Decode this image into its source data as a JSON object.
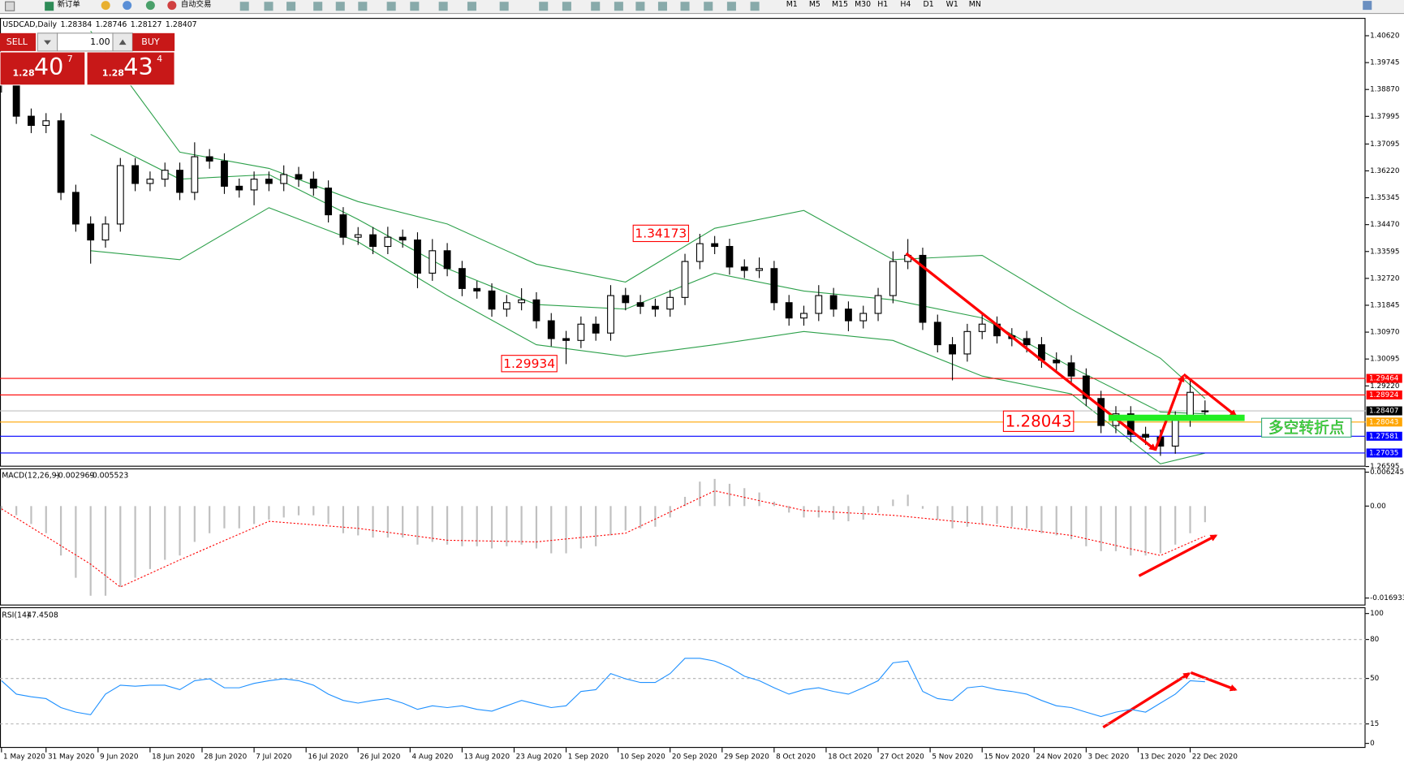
{
  "toolbar": {
    "new_order": "新订单",
    "auto_trading": "自动交易",
    "timeframes": [
      "M1",
      "M5",
      "M15",
      "M30",
      "H1",
      "H4",
      "D1",
      "W1",
      "MN"
    ]
  },
  "trade_panel": {
    "sell": "SELL",
    "lot": "1.00",
    "buy": "BUY",
    "sell_big": "1.28",
    "sell_pips": "40",
    "sell_frac": "7",
    "buy_big": "1.28",
    "buy_pips": "43",
    "buy_frac": "4"
  },
  "note": "多空转折点",
  "chart_data": [
    {
      "type": "candlestick",
      "title": "USDCAD,Daily",
      "up_color": "#ffffff",
      "down_color": "#000000",
      "open": [
        1.395,
        1.3902,
        1.38,
        1.377,
        1.3785,
        1.3552,
        1.3449,
        1.3397,
        1.3449,
        1.3639,
        1.3581,
        1.3595,
        1.3624,
        1.3552,
        1.3668,
        1.3654,
        1.3572,
        1.356,
        1.3595,
        1.3581,
        1.361,
        1.3595,
        1.3566,
        1.3479,
        1.3406,
        1.3414,
        1.3376,
        1.3406,
        1.3397,
        1.3289,
        1.3362,
        1.3304,
        1.3239,
        1.3231,
        1.3172,
        1.3193,
        1.3202,
        1.3134,
        1.3076,
        1.307,
        1.3123,
        1.3094,
        1.3216,
        1.3193,
        1.3181,
        1.3172,
        1.321,
        1.3327,
        1.3385,
        1.3376,
        1.3309,
        1.3298,
        1.3304,
        1.3193,
        1.3143,
        1.3158,
        1.3216,
        1.3172,
        1.3134,
        1.3158,
        1.3216,
        1.3327,
        1.3347,
        1.3129,
        1.3056,
        1.3026,
        1.3099,
        1.3123,
        1.3085,
        1.3076,
        1.3056,
        1.3006,
        1.2997,
        1.2954,
        1.2881,
        1.2793,
        1.2831,
        1.2764,
        1.2755,
        1.2726,
        1.2814,
        1.28384
      ],
      "high": [
        1.3975,
        1.3927,
        1.3825,
        1.381,
        1.381,
        1.3577,
        1.3474,
        1.3474,
        1.3664,
        1.3664,
        1.362,
        1.3649,
        1.3649,
        1.3715,
        1.3693,
        1.3679,
        1.3597,
        1.362,
        1.362,
        1.364,
        1.3635,
        1.362,
        1.3591,
        1.3504,
        1.3439,
        1.3439,
        1.344,
        1.3431,
        1.3422,
        1.34,
        1.3387,
        1.3329,
        1.3264,
        1.3256,
        1.3218,
        1.324,
        1.3227,
        1.3159,
        1.3101,
        1.3148,
        1.3148,
        1.325,
        1.3241,
        1.3218,
        1.3206,
        1.3235,
        1.3352,
        1.3417,
        1.341,
        1.3401,
        1.3334,
        1.334,
        1.3329,
        1.3218,
        1.3183,
        1.325,
        1.3241,
        1.3197,
        1.3183,
        1.3241,
        1.336,
        1.34,
        1.3372,
        1.3154,
        1.3081,
        1.3124,
        1.316,
        1.3148,
        1.311,
        1.3101,
        1.3081,
        1.3031,
        1.3022,
        1.2979,
        1.2906,
        1.2856,
        1.2856,
        1.2789,
        1.278,
        1.2839,
        1.2946,
        1.28746
      ],
      "low": [
        1.3877,
        1.3775,
        1.3745,
        1.3745,
        1.3527,
        1.3424,
        1.332,
        1.3372,
        1.3424,
        1.3556,
        1.3556,
        1.357,
        1.3527,
        1.3527,
        1.3629,
        1.3547,
        1.3535,
        1.351,
        1.3556,
        1.3556,
        1.357,
        1.3541,
        1.3454,
        1.3381,
        1.3381,
        1.3351,
        1.3351,
        1.3372,
        1.324,
        1.3264,
        1.3279,
        1.3214,
        1.3206,
        1.3147,
        1.3147,
        1.3168,
        1.3109,
        1.3051,
        1.2993,
        1.3045,
        1.3069,
        1.3069,
        1.3168,
        1.3156,
        1.3147,
        1.3147,
        1.3185,
        1.3302,
        1.3351,
        1.3284,
        1.3273,
        1.3273,
        1.3168,
        1.3118,
        1.3118,
        1.3133,
        1.3147,
        1.31,
        1.3109,
        1.3133,
        1.3191,
        1.3302,
        1.3104,
        1.3031,
        1.294,
        1.3001,
        1.3074,
        1.306,
        1.3051,
        1.3031,
        1.2981,
        1.2972,
        1.2929,
        1.2856,
        1.2768,
        1.2768,
        1.2739,
        1.273,
        1.2694,
        1.2701,
        1.2789,
        1.28127
      ],
      "close": [
        1.3902,
        1.38,
        1.377,
        1.3785,
        1.3552,
        1.3449,
        1.3397,
        1.3449,
        1.3639,
        1.3581,
        1.3595,
        1.3624,
        1.3552,
        1.3668,
        1.3654,
        1.3572,
        1.356,
        1.3595,
        1.3581,
        1.361,
        1.3595,
        1.3566,
        1.3479,
        1.3406,
        1.3414,
        1.3376,
        1.3406,
        1.3397,
        1.3289,
        1.3362,
        1.3304,
        1.3239,
        1.3231,
        1.3172,
        1.3193,
        1.3202,
        1.3134,
        1.3076,
        1.307,
        1.3123,
        1.3094,
        1.3216,
        1.3193,
        1.3181,
        1.3172,
        1.321,
        1.3327,
        1.3385,
        1.3376,
        1.3309,
        1.3298,
        1.3304,
        1.3193,
        1.3143,
        1.3158,
        1.3216,
        1.3172,
        1.3134,
        1.3158,
        1.3216,
        1.3327,
        1.3347,
        1.3129,
        1.3056,
        1.3026,
        1.3099,
        1.3123,
        1.3085,
        1.3076,
        1.3056,
        1.3006,
        1.2997,
        1.2954,
        1.2881,
        1.2793,
        1.2831,
        1.2764,
        1.2755,
        1.2726,
        1.2814,
        1.2901,
        1.28407
      ],
      "bands": {
        "color": "#2ca04a",
        "x": [
          6,
          12,
          18,
          24,
          30,
          36,
          42,
          48,
          54,
          60,
          66,
          72,
          78,
          81
        ],
        "upper": [
          1.4077,
          1.3683,
          1.363,
          1.3522,
          1.3449,
          1.3318,
          1.326,
          1.3435,
          1.3493,
          1.3333,
          1.3347,
          1.3172,
          1.3012,
          1.2881
        ],
        "middle": [
          1.3741,
          1.3595,
          1.361,
          1.3464,
          1.3304,
          1.3187,
          1.3172,
          1.3289,
          1.3231,
          1.3202,
          1.3143,
          1.2983,
          1.2837,
          1.2831
        ],
        "lower": [
          1.3362,
          1.3333,
          1.3502,
          1.3391,
          1.3216,
          1.3056,
          1.3018,
          1.3056,
          1.3099,
          1.307,
          1.2954,
          1.2896,
          1.2668,
          1.2703
        ]
      },
      "xlim": [
        -0.1,
        91.8
      ],
      "xticks": [
        {
          "value": 0,
          "label": "1 May 2020"
        },
        {
          "value": 3,
          "label": "31 May 2020"
        },
        {
          "value": 6.5,
          "label": "9 Jun 2020"
        },
        {
          "value": 10,
          "label": "18 Jun 2020"
        },
        {
          "value": 13.5,
          "label": "28 Jun 2020"
        },
        {
          "value": 17,
          "label": "7 Jul 2020"
        },
        {
          "value": 20.5,
          "label": "16 Jul 2020"
        },
        {
          "value": 24,
          "label": "26 Jul 2020"
        },
        {
          "value": 27.5,
          "label": "4 Aug 2020"
        },
        {
          "value": 31,
          "label": "13 Aug 2020"
        },
        {
          "value": 34.5,
          "label": "23 Aug 2020"
        },
        {
          "value": 38,
          "label": "1 Sep 2020"
        },
        {
          "value": 41.5,
          "label": "10 Sep 2020"
        },
        {
          "value": 45,
          "label": "20 Sep 2020"
        },
        {
          "value": 48.5,
          "label": "29 Sep 2020"
        },
        {
          "value": 52,
          "label": "8 Oct 2020"
        },
        {
          "value": 55.5,
          "label": "18 Oct 2020"
        },
        {
          "value": 59,
          "label": "27 Oct 2020"
        },
        {
          "value": 62.5,
          "label": "5 Nov 2020"
        },
        {
          "value": 66,
          "label": "15 Nov 2020"
        },
        {
          "value": 69.5,
          "label": "24 Nov 2020"
        },
        {
          "value": 73,
          "label": "3 Dec 2020"
        },
        {
          "value": 76.5,
          "label": "13 Dec 2020"
        },
        {
          "value": 80,
          "label": "22 Dec 2020"
        }
      ],
      "ylim": [
        1.2662,
        1.412
      ],
      "yticks": [
        {
          "value": 1.4062,
          "label": "1.40620"
        },
        1.39745,
        {
          "value": 1.3887,
          "label": "1.38870"
        },
        1.37995,
        1.37095,
        {
          "value": 1.3622,
          "label": "1.36220"
        },
        1.35345,
        {
          "value": 1.3447,
          "label": "1.34470"
        },
        1.33595,
        {
          "value": 1.3272,
          "label": "1.32720"
        },
        1.31845,
        {
          "value": 1.3097,
          "label": "1.30970"
        },
        1.30095,
        {
          "value": 1.2922,
          "label": "1.29220"
        },
        1.26595
      ],
      "levels": [
        {
          "value": 1.29464,
          "color": "#ff0000"
        },
        {
          "value": 1.28924,
          "color": "#ff0000"
        },
        {
          "value": 1.28407,
          "color": "#c0c0c0",
          "label_color": "#000000"
        },
        {
          "value": 1.28043,
          "color": "#ffa500"
        },
        {
          "value": 1.27581,
          "color": "#0000ff"
        },
        {
          "value": 1.27035,
          "color": "#0000ff"
        }
      ],
      "price_labels": [
        {
          "value": 1.34173
        },
        {
          "value": 1.29934
        },
        {
          "value": 1.28043
        }
      ]
    },
    {
      "type": "macd",
      "title": "MACD(12,26,9)",
      "histogram_color": "#c0c0c0",
      "signal_color": "#ff0000",
      "histogram": [
        -0.0008,
        -0.0017,
        -0.0033,
        -0.005,
        -0.0091,
        -0.0132,
        -0.0165,
        -0.0165,
        -0.0149,
        -0.0132,
        -0.0116,
        -0.0099,
        -0.0091,
        -0.0066,
        -0.005,
        -0.0041,
        -0.0041,
        -0.0033,
        -0.0025,
        -0.0021,
        -0.0017,
        -0.0017,
        -0.0033,
        -0.005,
        -0.0054,
        -0.0058,
        -0.0058,
        -0.0058,
        -0.0071,
        -0.0066,
        -0.0071,
        -0.0074,
        -0.0074,
        -0.0078,
        -0.0074,
        -0.0071,
        -0.0078,
        -0.0087,
        -0.0087,
        -0.0078,
        -0.0074,
        -0.0054,
        -0.0045,
        -0.0041,
        -0.0038,
        -0.0021,
        0.0017,
        0.0045,
        0.005,
        0.0041,
        0.0033,
        0.0025,
        0.0008,
        -0.0012,
        -0.0021,
        -0.0021,
        -0.0025,
        -0.0028,
        -0.0025,
        -0.0012,
        0.0012,
        0.0021,
        -0.0005,
        -0.0025,
        -0.0041,
        -0.0038,
        -0.0033,
        -0.0033,
        -0.0038,
        -0.0041,
        -0.005,
        -0.0054,
        -0.0061,
        -0.0074,
        -0.0083,
        -0.0083,
        -0.0091,
        -0.0091,
        -0.0087,
        -0.0071,
        -0.005,
        -0.002969
      ],
      "signal_x": [
        0,
        6,
        8,
        12,
        18,
        24,
        30,
        36,
        42,
        48,
        54,
        60,
        66,
        72,
        78,
        81
      ],
      "signal": [
        -0.0005,
        -0.0107,
        -0.0149,
        -0.0099,
        -0.0028,
        -0.0041,
        -0.0063,
        -0.0066,
        -0.005,
        0.0028,
        -0.0008,
        -0.0017,
        -0.0033,
        -0.0054,
        -0.0091,
        -0.005523
      ],
      "ylim": [
        -0.0183,
        0.00693
      ],
      "yticks": [
        0.006245,
        {
          "value": 0,
          "label": "0.00"
        },
        -0.016933
      ]
    },
    {
      "type": "rsi",
      "title": "RSI(14)",
      "color": "#1e90ff",
      "values": [
        48.3,
        37.9,
        35.9,
        34.5,
        27.6,
        24.1,
        22.1,
        37.9,
        44.8,
        44.1,
        44.8,
        44.8,
        41.4,
        48.3,
        49.7,
        42.8,
        42.8,
        46.2,
        48.3,
        49.7,
        48.3,
        44.8,
        37.9,
        33.1,
        31.0,
        33.1,
        34.5,
        31.0,
        26.2,
        29.0,
        27.6,
        29.0,
        26.2,
        24.8,
        29.0,
        33.1,
        30.3,
        27.6,
        29.0,
        40.0,
        41.4,
        53.8,
        49.7,
        46.9,
        46.9,
        53.8,
        65.5,
        65.5,
        63.4,
        58.6,
        51.7,
        48.3,
        42.8,
        37.9,
        41.4,
        42.8,
        40.0,
        37.9,
        42.8,
        48.3,
        62.1,
        63.4,
        40.0,
        34.5,
        33.1,
        42.8,
        44.1,
        41.4,
        40.0,
        37.9,
        33.1,
        29.0,
        27.6,
        24.1,
        20.7,
        24.1,
        26.2,
        24.1,
        31.0,
        37.9,
        48.3,
        47.4508
      ],
      "ylim": [
        0,
        100
      ],
      "yticks": [
        100,
        80,
        50,
        15,
        0
      ],
      "grid": true
    }
  ]
}
